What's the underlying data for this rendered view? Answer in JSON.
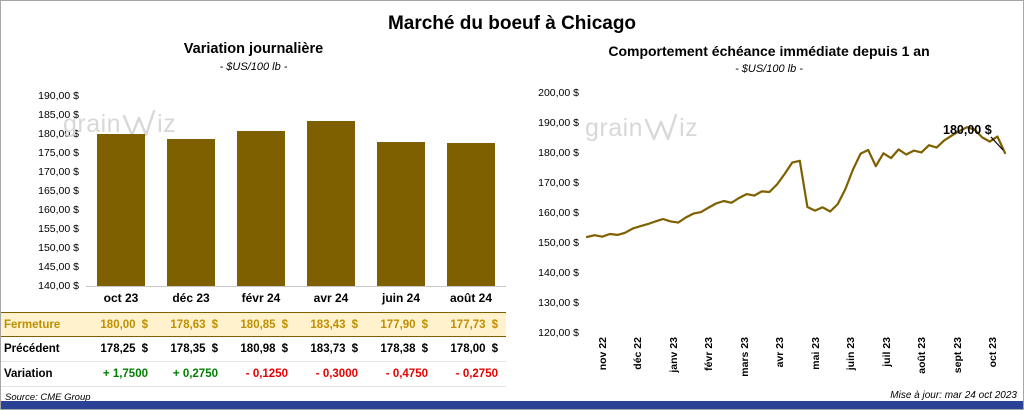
{
  "page": {
    "title": "Marché du boeuf à Chicago",
    "source": "Source: CME Group",
    "updated": "Mise à jour: mar 24 oct 2023",
    "watermark": {
      "prefix": "grain",
      "suffix": "iz"
    }
  },
  "colors": {
    "bar": "#7F6000",
    "line": "#7F6000",
    "highlight_bg": "#FFF2CC",
    "highlight_text": "#BF8F00",
    "positive": "#008000",
    "negative": "#E60000",
    "footer_bar": "#2A4296"
  },
  "chart_data": [
    {
      "type": "bar",
      "title": "Variation journalière",
      "subtitle": "- $US/100 lb -",
      "categories": [
        "oct 23",
        "déc 23",
        "févr 24",
        "avr 24",
        "juin 24",
        "août 24"
      ],
      "values": [
        180.0,
        178.63,
        180.85,
        183.43,
        177.9,
        177.73
      ],
      "ylim": [
        140,
        190
      ],
      "ytick_step": 5,
      "ytick_labels": [
        "190,00 $",
        "185,00 $",
        "180,00 $",
        "175,00 $",
        "170,00 $",
        "165,00 $",
        "160,00 $",
        "155,00 $",
        "150,00 $",
        "145,00 $",
        "140,00 $"
      ],
      "grid": false,
      "legend": "none"
    },
    {
      "type": "line",
      "title": "Comportement échéance immédiate depuis 1 an",
      "subtitle": "- $US/100 lb -",
      "x_labels": [
        "nov 22",
        "déc 22",
        "janv 23",
        "févr 23",
        "mars 23",
        "avr 23",
        "mai 23",
        "juin 23",
        "juil 23",
        "août 23",
        "sept 23",
        "oct 23"
      ],
      "values": [
        152.0,
        152.6,
        152.1,
        153.0,
        152.7,
        153.4,
        154.8,
        155.6,
        156.3,
        157.2,
        158.0,
        157.2,
        156.8,
        158.5,
        159.8,
        160.3,
        161.8,
        163.2,
        164.0,
        163.4,
        165.0,
        166.3,
        165.8,
        167.2,
        167.0,
        169.5,
        173.0,
        176.8,
        177.4,
        162.0,
        160.8,
        161.9,
        160.5,
        163.0,
        168.0,
        174.5,
        179.8,
        181.0,
        175.6,
        179.9,
        178.3,
        181.2,
        179.5,
        180.8,
        180.2,
        182.6,
        181.8,
        184.2,
        185.8,
        187.3,
        188.6,
        187.8,
        185.2,
        183.8,
        185.5,
        180.0
      ],
      "ylim": [
        120,
        200
      ],
      "ytick_step": 10,
      "ytick_labels": [
        "200,00 $",
        "190,00 $",
        "180,00 $",
        "170,00 $",
        "160,00 $",
        "150,00 $",
        "140,00 $",
        "130,00 $",
        "120,00 $"
      ],
      "annotation": "180,00 $",
      "grid": false,
      "legend": "none"
    }
  ],
  "table": {
    "currency": "$",
    "rows": [
      {
        "label": "Fermeture",
        "values": [
          "180,00",
          "178,63",
          "180,85",
          "183,43",
          "177,90",
          "177,73"
        ],
        "currency": true,
        "style": "highlight"
      },
      {
        "label": "Précédent",
        "values": [
          "178,25",
          "178,35",
          "180,98",
          "183,73",
          "178,38",
          "178,00"
        ],
        "currency": true,
        "style": "normal"
      },
      {
        "label": "Variation",
        "values": [
          "+ 1,7500",
          "+ 0,2750",
          "- 0,1250",
          "- 0,3000",
          "- 0,4750",
          "- 0,2750"
        ],
        "currency": false,
        "style": "signed"
      }
    ]
  }
}
